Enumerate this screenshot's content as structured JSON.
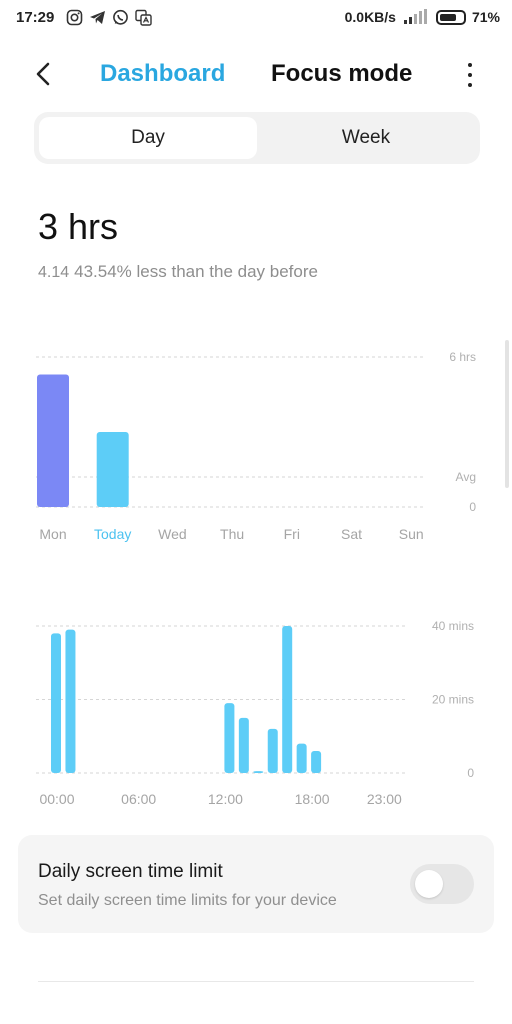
{
  "status_bar": {
    "time": "17:29",
    "icons": [
      "instagram-icon",
      "telegram-icon",
      "whatsapp-icon",
      "translate-icon"
    ],
    "network_speed": "0.0KB/s",
    "battery_text": "71%",
    "battery_level": 0.71
  },
  "header": {
    "tab_dashboard": "Dashboard",
    "tab_focus": "Focus mode",
    "accent_color": "#2aa7e0"
  },
  "segment": {
    "day": "Day",
    "week": "Week",
    "selected": "Day"
  },
  "summary": {
    "total": "3 hrs",
    "date": "4.14",
    "comparison": "43.54% less than the day before"
  },
  "chart_data": [
    {
      "type": "bar",
      "categories": [
        "Mon",
        "Today",
        "Wed",
        "Thu",
        "Fri",
        "Sat",
        "Sun"
      ],
      "values": [
        5.3,
        3.0,
        0,
        0,
        0,
        0,
        0
      ],
      "bar_colors": [
        "#7b88f5",
        "#5dcdf7",
        null,
        null,
        null,
        null,
        null
      ],
      "highlight_category": "Today",
      "y_ticks": [
        "6 hrs",
        "Avg",
        "0"
      ],
      "y_tick_values": [
        6,
        1.2,
        0
      ],
      "ylim": [
        0,
        6
      ],
      "grid": true
    },
    {
      "type": "bar",
      "x_labels": [
        "00:00",
        "06:00",
        "12:00",
        "18:00",
        "23:00"
      ],
      "x_label_hours": [
        0,
        6,
        12,
        18,
        23
      ],
      "bars": [
        {
          "hour": 0,
          "minutes": 38
        },
        {
          "hour": 1,
          "minutes": 39
        },
        {
          "hour": 12,
          "minutes": 19
        },
        {
          "hour": 13,
          "minutes": 15
        },
        {
          "hour": 14,
          "minutes": 0.5
        },
        {
          "hour": 15,
          "minutes": 12
        },
        {
          "hour": 16,
          "minutes": 40
        },
        {
          "hour": 17,
          "minutes": 8
        },
        {
          "hour": 18,
          "minutes": 6
        }
      ],
      "y_ticks": [
        "40 mins",
        "20 mins",
        "0"
      ],
      "y_tick_values": [
        40,
        20,
        0
      ],
      "ylim": [
        0,
        40
      ],
      "bar_color": "#5dcdf7",
      "grid": true
    }
  ],
  "limit_card": {
    "title": "Daily screen time limit",
    "subtitle": "Set daily screen time limits for your device",
    "enabled": false
  }
}
